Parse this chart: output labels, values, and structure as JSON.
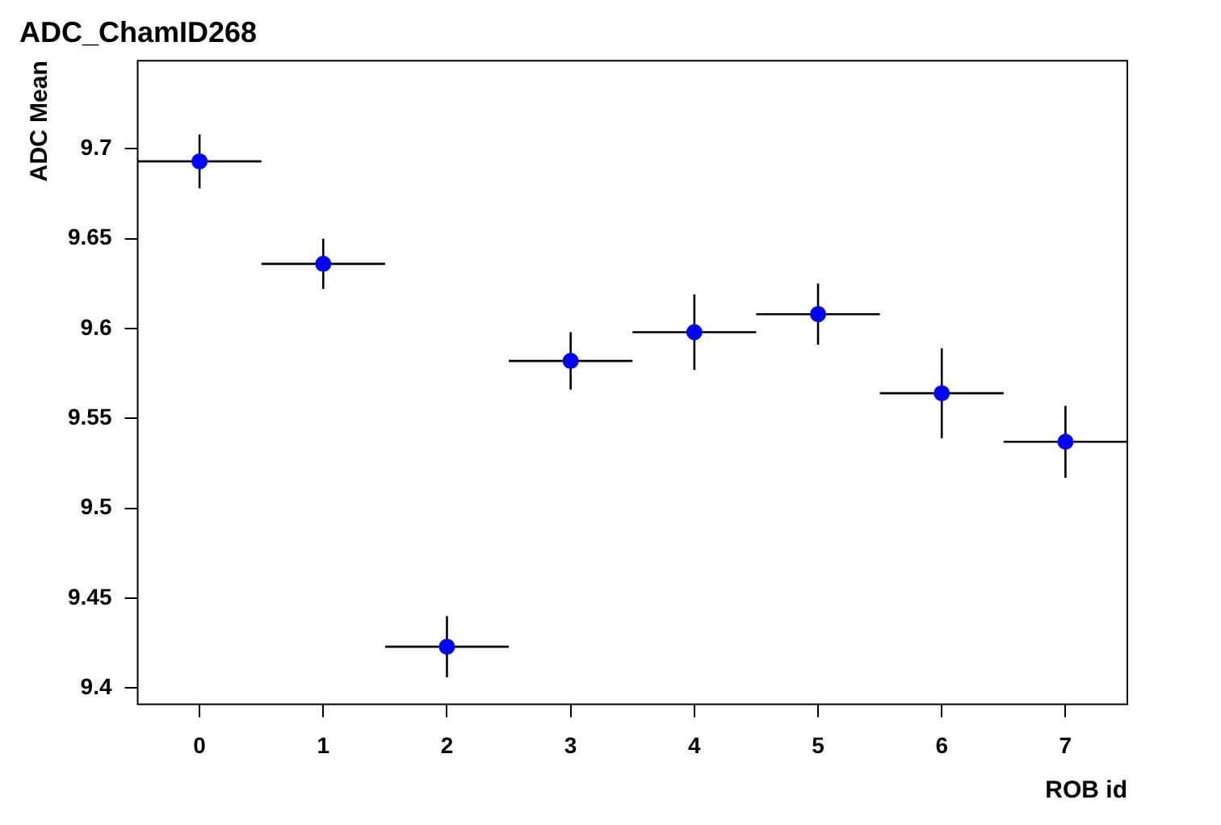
{
  "chart_data": {
    "type": "scatter",
    "title": "ADC_ChamID268",
    "xlabel": "ROB id",
    "ylabel": "ADC Mean",
    "x": [
      0,
      1,
      2,
      3,
      4,
      5,
      6,
      7
    ],
    "series": [
      {
        "color": "#0000ff",
        "values": [
          9.693,
          9.636,
          9.423,
          9.582,
          9.598,
          9.608,
          9.564,
          9.537
        ],
        "errors": [
          0.015,
          0.014,
          0.017,
          0.016,
          0.021,
          0.017,
          0.025,
          0.02
        ],
        "xerrors": [
          0.5,
          0.5,
          0.5,
          0.5,
          0.5,
          0.5,
          0.5,
          0.5
        ]
      }
    ],
    "xlim": [
      -0.5,
      7.5
    ],
    "xticks": [
      0,
      1,
      2,
      3,
      4,
      5,
      6,
      7
    ],
    "ylim": [
      9.391,
      9.749
    ],
    "yticks": [
      9.4,
      9.45,
      9.5,
      9.55,
      9.6,
      9.65,
      9.7
    ],
    "marker": "circle",
    "grid": false,
    "legend": false
  }
}
